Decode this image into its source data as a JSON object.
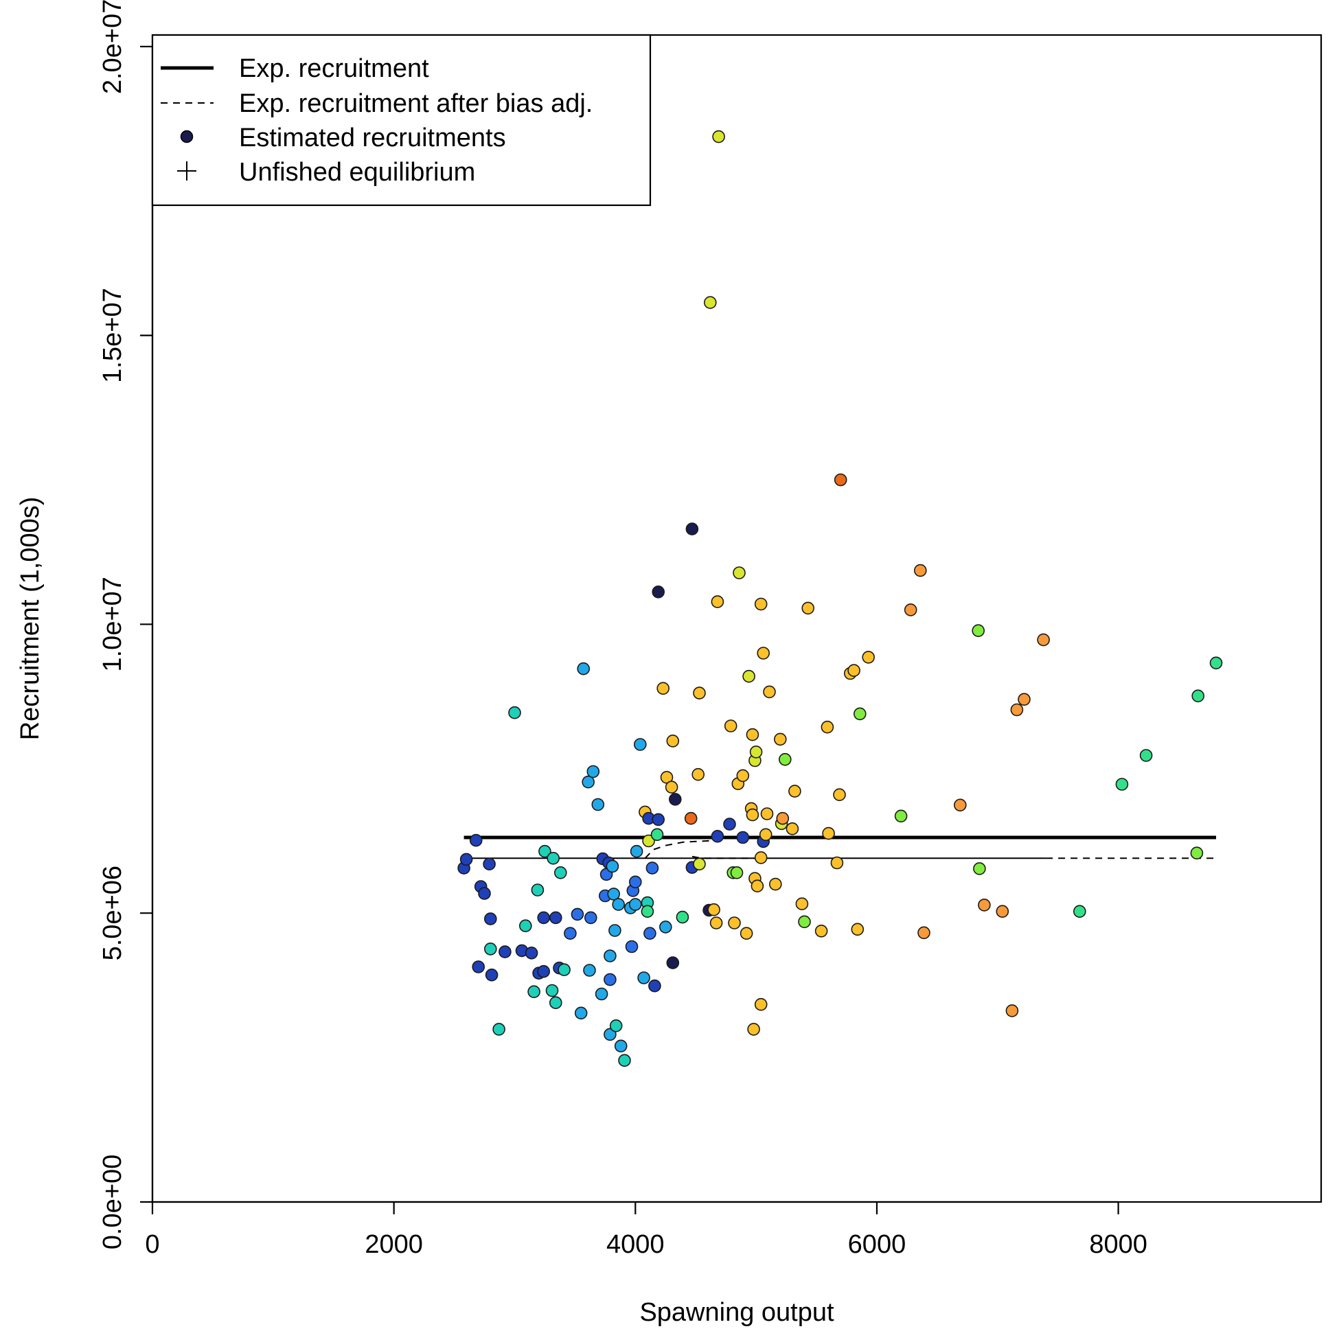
{
  "chart_data": {
    "type": "scatter",
    "title": "",
    "xlabel": "Spawning output",
    "ylabel": "Recruitment (1,000s)",
    "xlim": [
      0,
      9680
    ],
    "ylim": [
      0,
      20200000
    ],
    "x_ticks": [
      0,
      2000,
      4000,
      6000,
      8000
    ],
    "x_tick_labels": [
      "0",
      "2000",
      "4000",
      "6000",
      "8000"
    ],
    "y_ticks": [
      0,
      5000000,
      10000000,
      15000000,
      20000000
    ],
    "y_tick_labels": [
      "0.0e+00",
      "5.0e+06",
      "1.0e+07",
      "1.5e+07",
      "2.0e+07"
    ],
    "grid": false,
    "legend": {
      "position": "top-left",
      "entries": [
        {
          "label": "Exp. recruitment",
          "symbol": "thick-line"
        },
        {
          "label": "Exp. recruitment after bias adj.",
          "symbol": "dashed-line"
        },
        {
          "label": "Estimated recruitments",
          "symbol": "filled-circle"
        },
        {
          "label": "Unfished equilibrium",
          "symbol": "plus"
        }
      ]
    },
    "lines": [
      {
        "role": "exp_recruitment",
        "style": "solid-thick",
        "x": [
          2580,
          8810
        ],
        "y": [
          6310000,
          6310000
        ]
      },
      {
        "role": "exp_recruitment_bias_adj",
        "style": "solid-thin",
        "x": [
          2580,
          7400
        ],
        "y": [
          5950000,
          5950000
        ]
      },
      {
        "role": "exp_recruitment_bias_adj",
        "style": "dashed",
        "x": [
          7400,
          8810
        ],
        "y": [
          5950000,
          5950000
        ]
      },
      {
        "role": "exp_recruitment_bias_adj",
        "style": "dashed",
        "x": [
          4080,
          4150,
          4250,
          4400,
          4680
        ],
        "y": [
          5950000,
          6100000,
          6170000,
          6230000,
          6260000
        ]
      },
      {
        "role": "exp_recruitment_bias_adj",
        "style": "dashed",
        "x": [
          4470,
          4550,
          5060
        ],
        "y": [
          5980000,
          5950000,
          5950000
        ]
      }
    ],
    "colormap": [
      "#1a1c4f",
      "#2040b8",
      "#2b6fe8",
      "#22a8e8",
      "#1fd0b8",
      "#33e08a",
      "#80ec40",
      "#d8e630",
      "#fbc02a",
      "#f89a3a",
      "#ea6a1a"
    ],
    "points": [
      [
        2580,
        5780000,
        1
      ],
      [
        2600,
        5930000,
        1
      ],
      [
        2680,
        6260000,
        1
      ],
      [
        2700,
        4070000,
        1
      ],
      [
        2720,
        5460000,
        1
      ],
      [
        2750,
        5340000,
        1
      ],
      [
        2790,
        5850000,
        1
      ],
      [
        2800,
        4900000,
        1
      ],
      [
        2810,
        3930000,
        1
      ],
      [
        2800,
        4380000,
        4
      ],
      [
        2870,
        2990000,
        4
      ],
      [
        2920,
        4330000,
        1
      ],
      [
        3000,
        8470000,
        4
      ],
      [
        3060,
        4350000,
        1
      ],
      [
        3090,
        4780000,
        4
      ],
      [
        3140,
        4310000,
        1
      ],
      [
        3160,
        3640000,
        4
      ],
      [
        3190,
        5400000,
        4
      ],
      [
        3200,
        3960000,
        1
      ],
      [
        3240,
        4920000,
        1
      ],
      [
        3240,
        3990000,
        1
      ],
      [
        3250,
        6070000,
        4
      ],
      [
        3310,
        3660000,
        4
      ],
      [
        3320,
        5950000,
        4
      ],
      [
        3340,
        3450000,
        4
      ],
      [
        3340,
        4920000,
        1
      ],
      [
        3370,
        4050000,
        1
      ],
      [
        3380,
        5700000,
        4
      ],
      [
        3410,
        4020000,
        4
      ],
      [
        3460,
        4650000,
        2
      ],
      [
        3520,
        4980000,
        2
      ],
      [
        3550,
        3270000,
        3
      ],
      [
        3570,
        9230000,
        3
      ],
      [
        3610,
        7270000,
        3
      ],
      [
        3620,
        4010000,
        3
      ],
      [
        3630,
        4920000,
        2
      ],
      [
        3650,
        7450000,
        3
      ],
      [
        3690,
        6880000,
        3
      ],
      [
        3720,
        3600000,
        3
      ],
      [
        3730,
        5940000,
        1
      ],
      [
        3750,
        5300000,
        2
      ],
      [
        3760,
        5670000,
        2
      ],
      [
        3780,
        5870000,
        1
      ],
      [
        3790,
        2900000,
        3
      ],
      [
        3790,
        4260000,
        3
      ],
      [
        3790,
        3850000,
        2
      ],
      [
        3810,
        5810000,
        3
      ],
      [
        3820,
        5330000,
        3
      ],
      [
        3830,
        4700000,
        3
      ],
      [
        3840,
        3050000,
        4
      ],
      [
        3860,
        5150000,
        3
      ],
      [
        3880,
        2700000,
        3
      ],
      [
        3910,
        2450000,
        4
      ],
      [
        3960,
        5090000,
        3
      ],
      [
        3970,
        4420000,
        2
      ],
      [
        3980,
        5390000,
        2
      ],
      [
        4000,
        5540000,
        2
      ],
      [
        4000,
        5150000,
        3
      ],
      [
        4010,
        6070000,
        3
      ],
      [
        4040,
        7920000,
        3
      ],
      [
        4070,
        3880000,
        3
      ],
      [
        4080,
        6750000,
        8
      ],
      [
        4100,
        5180000,
        4
      ],
      [
        4110,
        6250000,
        7
      ],
      [
        4110,
        6640000,
        1
      ],
      [
        4100,
        5030000,
        5
      ],
      [
        4120,
        4650000,
        2
      ],
      [
        4140,
        5780000,
        2
      ],
      [
        4160,
        3740000,
        1
      ],
      [
        4180,
        6360000,
        5
      ],
      [
        4190,
        6620000,
        1
      ],
      [
        4190,
        10560000,
        0
      ],
      [
        4230,
        8890000,
        8
      ],
      [
        4250,
        4760000,
        3
      ],
      [
        4260,
        7350000,
        8
      ],
      [
        4300,
        7180000,
        8
      ],
      [
        4310,
        7980000,
        8
      ],
      [
        4310,
        4140000,
        0
      ],
      [
        4330,
        6970000,
        0
      ],
      [
        4390,
        4930000,
        5
      ],
      [
        4460,
        6640000,
        10
      ],
      [
        4470,
        11650000,
        0
      ],
      [
        4470,
        5790000,
        1
      ],
      [
        4520,
        7400000,
        8
      ],
      [
        4530,
        5850000,
        7
      ],
      [
        4530,
        8810000,
        8
      ],
      [
        4610,
        5050000,
        0
      ],
      [
        4620,
        15570000,
        7
      ],
      [
        4650,
        5060000,
        8
      ],
      [
        4670,
        4830000,
        8
      ],
      [
        4680,
        6330000,
        1
      ],
      [
        4680,
        10390000,
        8
      ],
      [
        4690,
        18440000,
        7
      ],
      [
        4780,
        6540000,
        1
      ],
      [
        4790,
        8240000,
        8
      ],
      [
        4810,
        5700000,
        6
      ],
      [
        4820,
        4830000,
        8
      ],
      [
        4840,
        5700000,
        6
      ],
      [
        4850,
        7240000,
        8
      ],
      [
        4860,
        10890000,
        7
      ],
      [
        4890,
        6310000,
        1
      ],
      [
        4890,
        7380000,
        8
      ],
      [
        4920,
        4650000,
        8
      ],
      [
        4940,
        9100000,
        7
      ],
      [
        4960,
        6810000,
        8
      ],
      [
        4970,
        6700000,
        8
      ],
      [
        4970,
        8090000,
        8
      ],
      [
        4980,
        2990000,
        8
      ],
      [
        4990,
        5600000,
        8
      ],
      [
        4990,
        7640000,
        7
      ],
      [
        5000,
        7790000,
        7
      ],
      [
        5010,
        5470000,
        8
      ],
      [
        5040,
        3420000,
        8
      ],
      [
        5040,
        5960000,
        8
      ],
      [
        5040,
        10350000,
        8
      ],
      [
        5060,
        6240000,
        1
      ],
      [
        5060,
        9500000,
        8
      ],
      [
        5080,
        6360000,
        8
      ],
      [
        5090,
        6720000,
        8
      ],
      [
        5110,
        8830000,
        8
      ],
      [
        5160,
        5500000,
        8
      ],
      [
        5200,
        8010000,
        8
      ],
      [
        5210,
        6550000,
        7
      ],
      [
        5220,
        6640000,
        9
      ],
      [
        5240,
        7660000,
        6
      ],
      [
        5300,
        6460000,
        8
      ],
      [
        5320,
        7110000,
        8
      ],
      [
        5380,
        5160000,
        8
      ],
      [
        5400,
        4850000,
        6
      ],
      [
        5430,
        10280000,
        8
      ],
      [
        5540,
        4690000,
        8
      ],
      [
        5590,
        8220000,
        8
      ],
      [
        5600,
        6380000,
        8
      ],
      [
        5670,
        5870000,
        8
      ],
      [
        5690,
        7050000,
        8
      ],
      [
        5700,
        12500000,
        10
      ],
      [
        5780,
        9150000,
        8
      ],
      [
        5810,
        9200000,
        8
      ],
      [
        5840,
        4720000,
        8
      ],
      [
        5860,
        8450000,
        6
      ],
      [
        5930,
        9430000,
        8
      ],
      [
        6200,
        6680000,
        6
      ],
      [
        6280,
        10250000,
        9
      ],
      [
        6360,
        10930000,
        9
      ],
      [
        6390,
        4660000,
        9
      ],
      [
        6690,
        6870000,
        9
      ],
      [
        6840,
        9890000,
        6
      ],
      [
        6850,
        5770000,
        6
      ],
      [
        6890,
        5140000,
        9
      ],
      [
        7040,
        5030000,
        9
      ],
      [
        7120,
        3310000,
        9
      ],
      [
        7160,
        8520000,
        9
      ],
      [
        7220,
        8700000,
        9
      ],
      [
        7380,
        9730000,
        9
      ],
      [
        7680,
        5030000,
        5
      ],
      [
        8030,
        7230000,
        5
      ],
      [
        8230,
        7730000,
        5
      ],
      [
        8650,
        6040000,
        6
      ],
      [
        8660,
        8760000,
        5
      ],
      [
        8810,
        9330000,
        5
      ]
    ]
  }
}
